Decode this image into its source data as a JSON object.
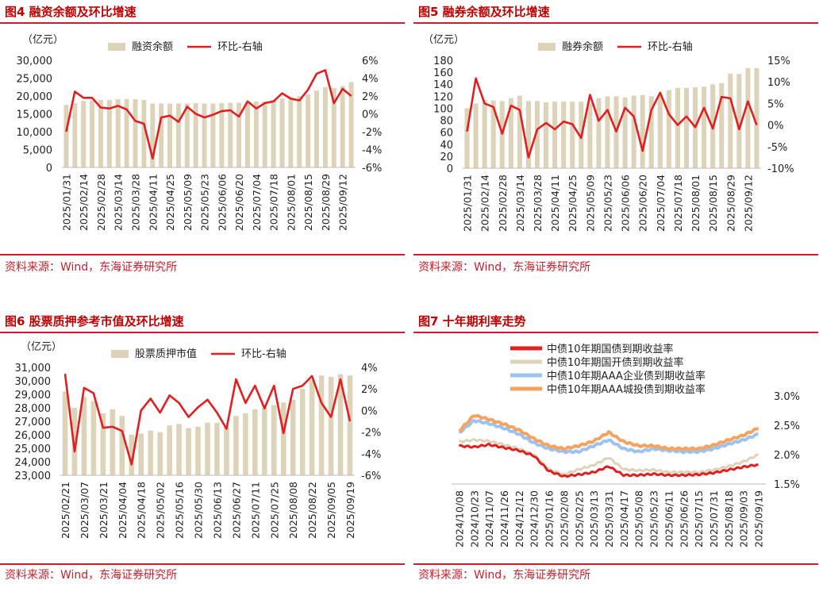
{
  "source_text": "资料来源：Wind，东海证券研究所",
  "charts": [
    {
      "title": "图4  融资余额及环比增速",
      "unit": "（亿元）",
      "chart_data": {
        "type": "bar",
        "categories": [
          "2025/01/31",
          "2025/02/07",
          "2025/02/14",
          "2025/02/21",
          "2025/02/28",
          "2025/03/07",
          "2025/03/14",
          "2025/03/21",
          "2025/03/28",
          "2025/04/03",
          "2025/04/11",
          "2025/04/18",
          "2025/04/25",
          "2025/04/30",
          "2025/05/09",
          "2025/05/16",
          "2025/05/23",
          "2025/05/30",
          "2025/06/06",
          "2025/06/13",
          "2025/06/20",
          "2025/06/27",
          "2025/07/04",
          "2025/07/11",
          "2025/07/18",
          "2025/07/25",
          "2025/08/01",
          "2025/08/08",
          "2025/08/15",
          "2025/08/22",
          "2025/08/29",
          "2025/09/05",
          "2025/09/12",
          "2025/09/19"
        ],
        "tick_labels": [
          "2025/01/31",
          "2025/02/14",
          "2025/02/28",
          "2025/03/14",
          "2025/03/28",
          "2025/04/11",
          "2025/04/25",
          "2025/05/09",
          "2025/05/23",
          "2025/06/06",
          "2025/06/20",
          "2025/07/04",
          "2025/07/18",
          "2025/08/01",
          "2025/08/15",
          "2025/08/29",
          "2025/09/12"
        ],
        "series": [
          {
            "name": "融资余额",
            "type": "bar",
            "axis": "left",
            "color": "#ddd3b9",
            "values": [
              17500,
              18000,
              18600,
              18800,
              18900,
              18900,
              19100,
              19200,
              19100,
              18900,
              17900,
              17900,
              17900,
              17900,
              17900,
              18000,
              17900,
              17900,
              18000,
              18100,
              18100,
              18200,
              18500,
              18500,
              18900,
              19300,
              19700,
              20000,
              20500,
              21500,
              22500,
              22200,
              22800,
              23900
            ]
          },
          {
            "name": "环比-右轴",
            "type": "line",
            "axis": "right",
            "color": "#e02020",
            "values": [
              -2.0,
              2.5,
              1.8,
              1.8,
              0.7,
              0.6,
              0.9,
              0.5,
              -0.8,
              -1.1,
              -5.0,
              -0.4,
              -0.2,
              -0.9,
              0.8,
              0.0,
              -0.4,
              -0.1,
              0.3,
              0.4,
              -0.3,
              1.4,
              0.6,
              1.2,
              1.4,
              2.3,
              1.7,
              1.5,
              2.7,
              4.5,
              4.9,
              1.2,
              2.8,
              2.0
            ]
          }
        ],
        "ylim_left": [
          0,
          30000
        ],
        "ylim_right": [
          -6,
          6
        ],
        "yticks_left": [
          "0",
          "5,000",
          "10,000",
          "15,000",
          "20,000",
          "25,000",
          "30,000"
        ],
        "yticks_right": [
          "-6%",
          "-4%",
          "-2%",
          "0%",
          "2%",
          "4%",
          "6%"
        ]
      }
    },
    {
      "title": "图5  融券余额及环比增速",
      "unit": "（亿元）",
      "chart_data": {
        "type": "bar",
        "categories": [
          "2025/01/31",
          "2025/02/07",
          "2025/02/14",
          "2025/02/21",
          "2025/02/28",
          "2025/03/07",
          "2025/03/14",
          "2025/03/21",
          "2025/03/28",
          "2025/04/03",
          "2025/04/11",
          "2025/04/18",
          "2025/04/25",
          "2025/04/30",
          "2025/05/09",
          "2025/05/16",
          "2025/05/23",
          "2025/05/30",
          "2025/06/06",
          "2025/06/13",
          "2025/06/20",
          "2025/06/27",
          "2025/07/04",
          "2025/07/11",
          "2025/07/18",
          "2025/07/25",
          "2025/08/01",
          "2025/08/08",
          "2025/08/15",
          "2025/08/22",
          "2025/08/29",
          "2025/09/05",
          "2025/09/12",
          "2025/09/19"
        ],
        "tick_labels": [
          "2025/01/31",
          "2025/02/14",
          "2025/02/28",
          "2025/03/14",
          "2025/03/28",
          "2025/04/11",
          "2025/04/25",
          "2025/05/09",
          "2025/05/23",
          "2025/06/06",
          "2025/06/20",
          "2025/07/04",
          "2025/07/18",
          "2025/08/01",
          "2025/08/15",
          "2025/08/29",
          "2025/09/12"
        ],
        "series": [
          {
            "name": "融券余额",
            "type": "bar",
            "axis": "left",
            "color": "#ddd3b9",
            "values": [
              100,
              108,
              114,
              113,
              112,
              117,
              121,
              112,
              112,
              110,
              111,
              111,
              111,
              111,
              108,
              117,
              120,
              120,
              118,
              121,
              122,
              120,
              121,
              130,
              134,
              134,
              135,
              136,
              140,
              142,
              158,
              157,
              167,
              167
            ]
          },
          {
            "name": "环比-右轴",
            "type": "line",
            "axis": "right",
            "color": "#e02020",
            "values": [
              -1.5,
              10.8,
              5.0,
              4.2,
              -2.0,
              4.5,
              3.5,
              -7.5,
              -1.0,
              0.5,
              -1.0,
              0.8,
              0.2,
              -3.0,
              7.0,
              1.0,
              3.5,
              -1.5,
              4.0,
              2.0,
              -6.0,
              3.5,
              7.5,
              2.5,
              0.0,
              2.0,
              -0.5,
              4.0,
              -0.8,
              6.5,
              6.2,
              -1.0,
              5.5,
              0.0
            ]
          }
        ],
        "ylim_left": [
          0,
          180
        ],
        "ylim_right": [
          -10,
          15
        ],
        "yticks_left": [
          "0",
          "20",
          "40",
          "60",
          "80",
          "100",
          "120",
          "140",
          "160",
          "180"
        ],
        "yticks_right": [
          "-10%",
          "-5%",
          "0%",
          "5%",
          "10%",
          "15%"
        ]
      }
    },
    {
      "title": "图6  股票质押参考市值及环比增速",
      "unit": "（亿元）",
      "chart_data": {
        "type": "bar",
        "categories": [
          "2025/02/21",
          "2025/02/28",
          "2025/03/07",
          "2025/03/14",
          "2025/03/21",
          "2025/03/28",
          "2025/04/04",
          "2025/04/11",
          "2025/04/18",
          "2025/04/25",
          "2025/05/02",
          "2025/05/09",
          "2025/05/16",
          "2025/05/23",
          "2025/05/30",
          "2025/06/06",
          "2025/06/13",
          "2025/06/20",
          "2025/06/27",
          "2025/07/04",
          "2025/07/11",
          "2025/07/18",
          "2025/07/25",
          "2025/08/01",
          "2025/08/08",
          "2025/08/15",
          "2025/08/22",
          "2025/08/29",
          "2025/09/05",
          "2025/09/12",
          "2025/09/19"
        ],
        "tick_labels": [
          "2025/02/21",
          "2025/03/07",
          "2025/03/21",
          "2025/04/04",
          "2025/04/18",
          "2025/05/02",
          "2025/05/16",
          "2025/05/30",
          "2025/06/13",
          "2025/06/27",
          "2025/07/11",
          "2025/07/25",
          "2025/08/08",
          "2025/08/22",
          "2025/09/05",
          "2025/09/19"
        ],
        "series": [
          {
            "name": "股票质押市值",
            "type": "bar",
            "axis": "left",
            "color": "#ddd3b9",
            "values": [
              29200,
              28000,
              28800,
              28500,
              27600,
              27900,
              27400,
              26000,
              26100,
              26300,
              26200,
              26700,
              26800,
              26500,
              26600,
              26900,
              26900,
              26600,
              27400,
              27600,
              27900,
              28000,
              28200,
              28400,
              28600,
              29400,
              30100,
              30400,
              30300,
              30500,
              30400
            ]
          },
          {
            "name": "环比-右轴",
            "type": "line",
            "axis": "right",
            "color": "#e02020",
            "values": [
              3.4,
              -3.8,
              2.1,
              1.6,
              -1.6,
              -1.5,
              -1.9,
              -5.0,
              0.0,
              1.1,
              -0.2,
              1.4,
              0.7,
              -0.6,
              0.3,
              1.0,
              -0.2,
              -1.7,
              2.9,
              0.7,
              2.3,
              0.2,
              2.3,
              -2.1,
              2.0,
              2.3,
              3.2,
              0.7,
              -0.6,
              2.9,
              -1.0
            ]
          }
        ],
        "ylim_left": [
          23000,
          31000
        ],
        "ylim_right": [
          -6,
          4
        ],
        "yticks_left": [
          "23,000",
          "24,000",
          "25,000",
          "26,000",
          "27,000",
          "28,000",
          "29,000",
          "30,000",
          "31,000"
        ],
        "yticks_right": [
          "-6%",
          "-4%",
          "-2%",
          "0%",
          "2%",
          "4%"
        ]
      }
    },
    {
      "title": "图7  十年期利率走势",
      "unit": "",
      "chart_data": {
        "type": "line",
        "tick_labels": [
          "2024/10/08",
          "2024/10/23",
          "2024/11/07",
          "2024/11/26",
          "2024/12/12",
          "2024/12/30",
          "2025/01/16",
          "2025/02/08",
          "2025/02/25",
          "2025/03/13",
          "2025/03/31",
          "2025/04/17",
          "2025/05/08",
          "2025/05/23",
          "2025/06/11",
          "2025/06/26",
          "2025/07/15",
          "2025/07/31",
          "2025/08/18",
          "2025/09/03",
          "2025/09/19"
        ],
        "series": [
          {
            "name": "中债10年期国债到期收益率",
            "color": "#e02020",
            "lw": 3,
            "values": [
              2.15,
              2.13,
              2.17,
              2.12,
              2.07,
              1.98,
              1.72,
              1.63,
              1.66,
              1.7,
              1.8,
              1.65,
              1.65,
              1.67,
              1.65,
              1.65,
              1.66,
              1.69,
              1.74,
              1.79,
              1.83
            ]
          },
          {
            "name": "中债10年期国开债到期收益率",
            "color": "#ddd3b9",
            "lw": 3,
            "values": [
              2.22,
              2.25,
              2.23,
              2.17,
              2.1,
              2.0,
              1.75,
              1.66,
              1.75,
              1.82,
              1.95,
              1.75,
              1.73,
              1.74,
              1.7,
              1.7,
              1.7,
              1.74,
              1.8,
              1.88,
              2.0
            ]
          },
          {
            "name": "中债10年期AAA企业债到期收益率",
            "color": "#9cc3f0",
            "lw": 4,
            "values": [
              2.37,
              2.58,
              2.53,
              2.45,
              2.35,
              2.2,
              2.1,
              2.05,
              2.05,
              2.15,
              2.25,
              2.1,
              2.05,
              2.1,
              2.07,
              2.05,
              2.05,
              2.1,
              2.18,
              2.25,
              2.35
            ]
          },
          {
            "name": "中债10年期AAA城投债到期收益率",
            "color": "#f4a460",
            "lw": 4,
            "values": [
              2.4,
              2.67,
              2.6,
              2.52,
              2.42,
              2.27,
              2.15,
              2.1,
              2.15,
              2.23,
              2.38,
              2.22,
              2.15,
              2.15,
              2.1,
              2.1,
              2.1,
              2.16,
              2.25,
              2.33,
              2.45
            ]
          }
        ],
        "ylim_right": [
          1.5,
          3.0
        ],
        "yticks_right": [
          "1.5%",
          "2.0%",
          "2.5%",
          "3.0%"
        ]
      }
    }
  ]
}
